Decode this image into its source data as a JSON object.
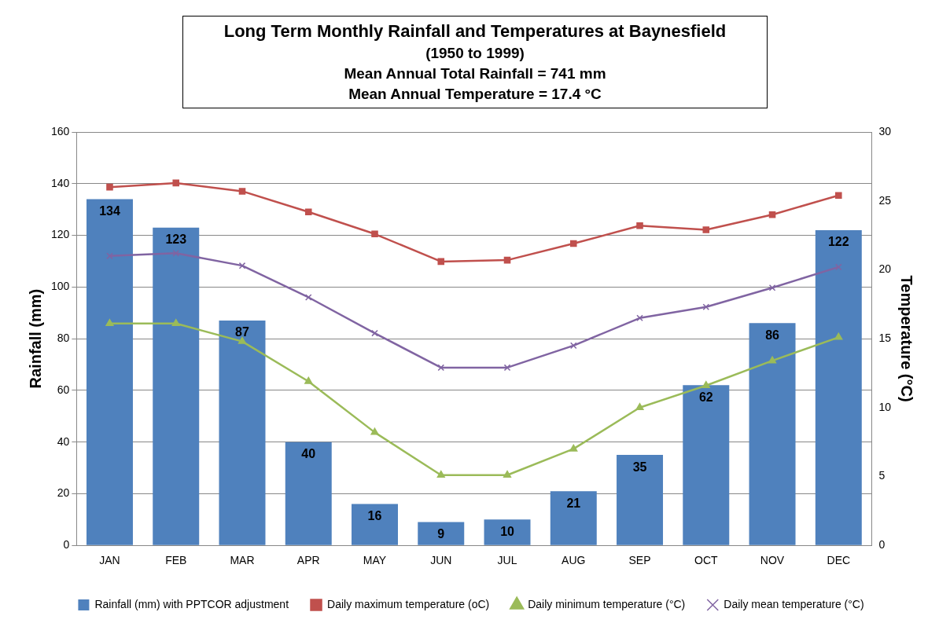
{
  "chart_data": {
    "type": "bar",
    "title": "Long Term Monthly Rainfall and Temperatures at Baynesfield",
    "subtitle": "(1950 to 1999)",
    "annotations": [
      "Mean Annual Total Rainfall = 741 mm",
      "Mean Annual Temperature = 17.4 °C"
    ],
    "ylabel": "Rainfall (mm)",
    "y2label": "Temperature (°C)",
    "categories": [
      "JAN",
      "FEB",
      "MAR",
      "APR",
      "MAY",
      "JUN",
      "JUL",
      "AUG",
      "SEP",
      "OCT",
      "NOV",
      "DEC"
    ],
    "series": [
      {
        "name": "Rainfall (mm) with PPTCOR adjustment",
        "color": "#4f81bd",
        "values": [
          134,
          123,
          87,
          40,
          16,
          9,
          10,
          21,
          35,
          62,
          86,
          122
        ],
        "value_labels": [
          "134",
          "123",
          "87",
          "40",
          "16",
          "9",
          "10",
          "21",
          "35",
          "62",
          "86",
          "122"
        ]
      },
      {
        "name": "Daily maximum temperature (oC)",
        "type": "line",
        "axis": "y2",
        "marker": "square",
        "color": "#c0504d",
        "values": [
          26.0,
          26.3,
          25.7,
          24.2,
          22.6,
          20.6,
          20.7,
          21.9,
          23.2,
          22.9,
          24.0,
          25.4
        ]
      },
      {
        "name": "Daily minimum temperature (°C)",
        "type": "line",
        "axis": "y2",
        "marker": "triangle",
        "color": "#9bbb59",
        "values": [
          16.1,
          16.1,
          14.8,
          11.9,
          8.2,
          5.1,
          5.1,
          7.0,
          10.0,
          11.6,
          13.4,
          15.1
        ]
      },
      {
        "name": "Daily mean temperature (°C)",
        "type": "line",
        "axis": "y2",
        "marker": "cross",
        "color": "#8064a2",
        "values": [
          21.0,
          21.2,
          20.3,
          18.0,
          15.4,
          12.9,
          12.9,
          14.5,
          16.5,
          17.3,
          18.7,
          20.2
        ]
      }
    ],
    "ylim": [
      0,
      160
    ],
    "yticks": [
      0,
      20,
      40,
      60,
      80,
      100,
      120,
      140,
      160
    ],
    "y2lim": [
      0,
      30
    ],
    "y2ticks": [
      0,
      5,
      10,
      15,
      20,
      25,
      30
    ],
    "grid": "y",
    "legend": "bottom"
  }
}
